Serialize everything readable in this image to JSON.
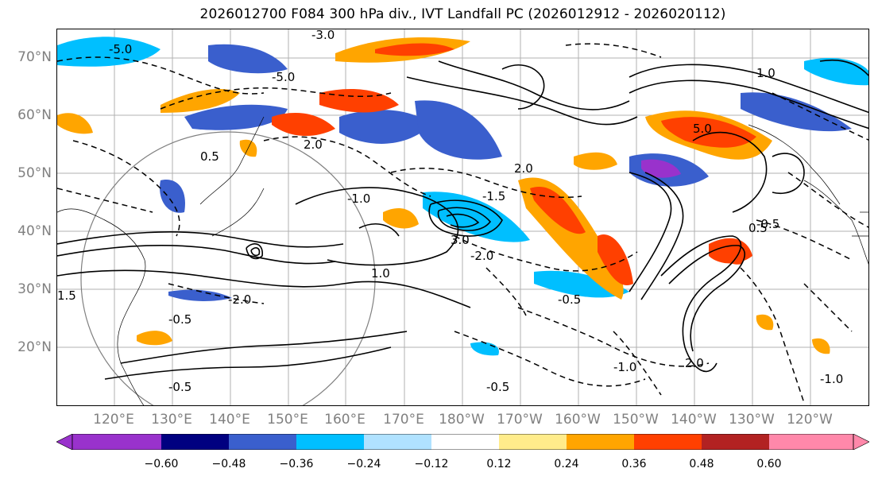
{
  "title": "2026012700 F084 300 hPa div., IVT Landfall PC (2026012912 - 2026020112)",
  "lat_labels": [
    "70°N",
    "60°N",
    "50°N",
    "40°N",
    "30°N",
    "20°N"
  ],
  "lon_labels": [
    "120°E",
    "130°E",
    "140°E",
    "150°E",
    "160°E",
    "170°E",
    "180°W",
    "170°W",
    "160°W",
    "150°W",
    "140°W",
    "130°W",
    "120°W"
  ],
  "contour_labels": [
    "-5.0",
    "-3.0",
    "-2.0",
    "-1.5",
    "-1.0",
    "-0.5",
    "1.0",
    "2.0",
    "3.0",
    "5.0",
    "1.5",
    "0.5"
  ],
  "colorbar": {
    "colors": [
      "#9932cc",
      "#000080",
      "#3a5fcd",
      "#00bfff",
      "#b0e2ff",
      "#ffffff",
      "#ffec8b",
      "#ffa500",
      "#ff4000",
      "#b22222",
      "#ff88aa"
    ],
    "ticks": [
      "−0.60",
      "−0.48",
      "−0.36",
      "−0.24",
      "−0.12",
      "0.12",
      "0.24",
      "0.36",
      "0.48",
      "0.60"
    ]
  }
}
